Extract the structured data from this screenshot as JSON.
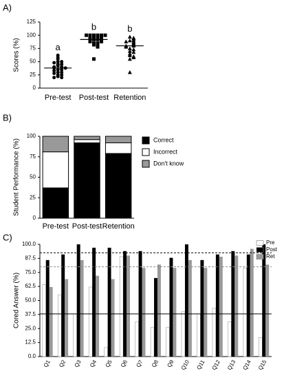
{
  "chart_data": [
    {
      "type": "dot",
      "label": "A)",
      "ylabel": "Scores (%)",
      "categories": [
        "Pre-test",
        "Post-test",
        "Retention"
      ],
      "values": [
        [
          62,
          58,
          55,
          50,
          50,
          48,
          45,
          45,
          42,
          40,
          40,
          38,
          38,
          35,
          35,
          33,
          30,
          30,
          28,
          25,
          25,
          22,
          20,
          20
        ],
        [
          100,
          100,
          100,
          100,
          100,
          100,
          97,
          97,
          95,
          95,
          92,
          92,
          90,
          90,
          88,
          88,
          85,
          85,
          82,
          80,
          78,
          55
        ],
        [
          97,
          95,
          93,
          90,
          90,
          88,
          87,
          85,
          83,
          82,
          80,
          80,
          78,
          75,
          73,
          70,
          68,
          65,
          62,
          60,
          58,
          55,
          30
        ]
      ],
      "means": [
        38,
        92,
        80
      ],
      "annotations": [
        "a",
        "b",
        "b"
      ],
      "markers": [
        "circle",
        "square",
        "triangle"
      ],
      "color": "#000000",
      "ylim": [
        0,
        125
      ],
      "yticks": [
        0,
        25,
        50,
        75,
        100,
        125
      ]
    },
    {
      "type": "stacked_bar",
      "label": "B)",
      "ylabel": "Student Performance (%)",
      "categories": [
        "Pre-test",
        "Post-test",
        "Retention"
      ],
      "series": [
        {
          "name": "Correct",
          "color": "#000000",
          "values": [
            37,
            92,
            79
          ]
        },
        {
          "name": "Incorrect",
          "color": "#ffffff",
          "values": [
            44,
            4,
            13
          ]
        },
        {
          "name": "Don't know",
          "color": "#999999",
          "values": [
            19,
            4,
            8
          ]
        }
      ],
      "ylim": [
        0,
        100
      ],
      "yticks": [
        0,
        25,
        50,
        75,
        100
      ]
    },
    {
      "type": "grouped_bar",
      "label": "C)",
      "ylabel": "Cored Answer (%)",
      "categories": [
        "Q1",
        "Q2",
        "Q3",
        "Q4",
        "Q5",
        "Q6",
        "Q7",
        "Q8",
        "Q9",
        "Q10",
        "Q11",
        "Q12",
        "Q13",
        "Q14",
        "Q15"
      ],
      "series": [
        {
          "name": "Pre",
          "color": "#ffffff",
          "values": [
            64,
            55,
            38,
            62,
            8,
            89,
            31,
            26,
            26,
            40,
            38,
            43,
            31,
            79,
            17
          ]
        },
        {
          "name": "Post",
          "color": "#000000",
          "values": [
            86,
            91,
            100,
            97,
            97,
            94,
            94,
            70,
            88,
            100,
            86,
            91,
            94,
            91,
            100
          ]
        },
        {
          "name": "Ret",
          "color": "#999999",
          "values": [
            62,
            69,
            86,
            72,
            69,
            90,
            79,
            82,
            79,
            86,
            79,
            89,
            90,
            96,
            82
          ]
        }
      ],
      "reference_lines": [
        {
          "value": 92.5,
          "color": "#000000",
          "dashed": true
        },
        {
          "value": 80,
          "color": "#888888",
          "dashed": true
        },
        {
          "value": 38,
          "color": "#000000",
          "dashed": false
        }
      ],
      "ylim": [
        0,
        100
      ],
      "yticks": [
        {
          "value": 0,
          "label": "0.0"
        },
        12.5,
        {
          "value": 25,
          "label": "25.0"
        },
        37.5,
        {
          "value": 50,
          "label": "50.0"
        },
        62.5,
        {
          "value": 75,
          "label": "75.0"
        },
        87.5,
        {
          "value": 100,
          "label": "100.0"
        }
      ]
    }
  ]
}
